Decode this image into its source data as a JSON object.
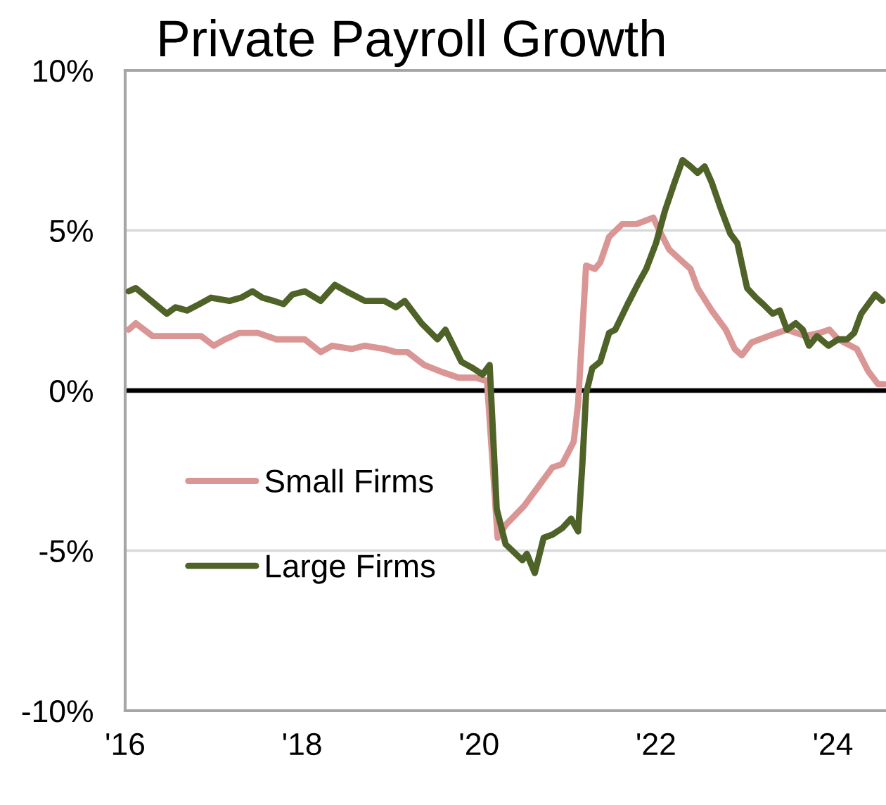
{
  "chart_data": {
    "type": "line",
    "title": "Private Payroll Growth",
    "xlim": [
      2016,
      2024.6
    ],
    "xticks": [
      {
        "value": 2016,
        "label": "'16"
      },
      {
        "value": 2018,
        "label": "'18"
      },
      {
        "value": 2020,
        "label": "'20"
      },
      {
        "value": 2022,
        "label": "'22"
      },
      {
        "value": 2024,
        "label": "'24"
      }
    ],
    "ylim": [
      -10,
      10
    ],
    "yticks": [
      {
        "value": -10,
        "label": "-10%"
      },
      {
        "value": -5,
        "label": "-5%"
      },
      {
        "value": 0,
        "label": "0%"
      },
      {
        "value": 5,
        "label": "5%"
      },
      {
        "value": 10,
        "label": "10%"
      }
    ],
    "grid": "y",
    "legend": "bottom left",
    "line_style": "solid",
    "ref_lines": [
      {
        "axis": "y",
        "value": 0,
        "color": "#000000"
      }
    ],
    "series": [
      {
        "name": "Small Firms",
        "color": "#d99694",
        "x": [
          2016.04,
          2016.12,
          2016.31,
          2016.54,
          2016.86,
          2017.0,
          2017.13,
          2017.29,
          2017.5,
          2017.71,
          2017.87,
          2018.03,
          2018.21,
          2018.34,
          2018.56,
          2018.71,
          2018.93,
          2019.06,
          2019.19,
          2019.38,
          2019.56,
          2019.77,
          2019.96,
          2020.09,
          2020.21,
          2020.3,
          2020.51,
          2020.67,
          2020.83,
          2020.94,
          2021.07,
          2021.12,
          2021.21,
          2021.31,
          2021.37,
          2021.47,
          2021.62,
          2021.78,
          2021.97,
          2022.02,
          2022.15,
          2022.31,
          2022.39,
          2022.47,
          2022.63,
          2022.79,
          2022.89,
          2022.97,
          2023.08,
          2023.27,
          2023.48,
          2023.69,
          2023.85,
          2023.96,
          2024.06,
          2024.27,
          2024.4,
          2024.51,
          2024.58
        ],
        "values": [
          1.9,
          2.1,
          1.7,
          1.7,
          1.7,
          1.4,
          1.6,
          1.8,
          1.8,
          1.6,
          1.6,
          1.6,
          1.2,
          1.4,
          1.3,
          1.4,
          1.3,
          1.2,
          1.2,
          0.8,
          0.6,
          0.4,
          0.4,
          0.3,
          -4.6,
          -4.2,
          -3.6,
          -3.0,
          -2.4,
          -2.3,
          -1.6,
          -0.4,
          3.9,
          3.8,
          4.0,
          4.8,
          5.2,
          5.2,
          5.4,
          5.1,
          4.4,
          4.0,
          3.8,
          3.2,
          2.5,
          1.9,
          1.3,
          1.1,
          1.5,
          1.7,
          1.9,
          1.7,
          1.8,
          1.9,
          1.6,
          1.3,
          0.6,
          0.2,
          0.2
        ]
      },
      {
        "name": "Large Firms",
        "color": "#4f6228",
        "x": [
          2016.04,
          2016.12,
          2016.47,
          2016.57,
          2016.7,
          2016.84,
          2016.97,
          2017.18,
          2017.31,
          2017.44,
          2017.55,
          2017.68,
          2017.79,
          2017.89,
          2018.03,
          2018.21,
          2018.37,
          2018.5,
          2018.71,
          2018.93,
          2019.06,
          2019.16,
          2019.35,
          2019.53,
          2019.62,
          2019.8,
          2019.93,
          2020.04,
          2020.12,
          2020.2,
          2020.3,
          2020.49,
          2020.54,
          2020.63,
          2020.73,
          2020.83,
          2020.94,
          2021.04,
          2021.12,
          2021.17,
          2021.21,
          2021.28,
          2021.37,
          2021.47,
          2021.54,
          2021.68,
          2021.81,
          2021.89,
          2022.0,
          2022.1,
          2022.21,
          2022.3,
          2022.39,
          2022.47,
          2022.55,
          2022.63,
          2022.73,
          2022.84,
          2022.92,
          2023.03,
          2023.13,
          2023.21,
          2023.32,
          2023.4,
          2023.48,
          2023.58,
          2023.66,
          2023.73,
          2023.82,
          2023.95,
          2024.06,
          2024.16,
          2024.24,
          2024.32,
          2024.48,
          2024.56
        ],
        "values": [
          3.1,
          3.2,
          2.4,
          2.6,
          2.5,
          2.7,
          2.9,
          2.8,
          2.9,
          3.1,
          2.9,
          2.8,
          2.7,
          3.0,
          3.1,
          2.8,
          3.3,
          3.1,
          2.8,
          2.8,
          2.6,
          2.8,
          2.1,
          1.6,
          1.9,
          0.9,
          0.7,
          0.5,
          0.8,
          -3.7,
          -4.8,
          -5.3,
          -5.1,
          -5.7,
          -4.6,
          -4.5,
          -4.3,
          -4.0,
          -4.4,
          -2.2,
          -0.1,
          0.7,
          0.9,
          1.8,
          1.9,
          2.7,
          3.4,
          3.8,
          4.6,
          5.6,
          6.5,
          7.2,
          7.0,
          6.8,
          7.0,
          6.5,
          5.7,
          4.9,
          4.6,
          3.2,
          2.9,
          2.7,
          2.4,
          2.5,
          1.9,
          2.1,
          1.9,
          1.4,
          1.7,
          1.4,
          1.6,
          1.6,
          1.8,
          2.4,
          3.0,
          2.8
        ]
      }
    ]
  }
}
